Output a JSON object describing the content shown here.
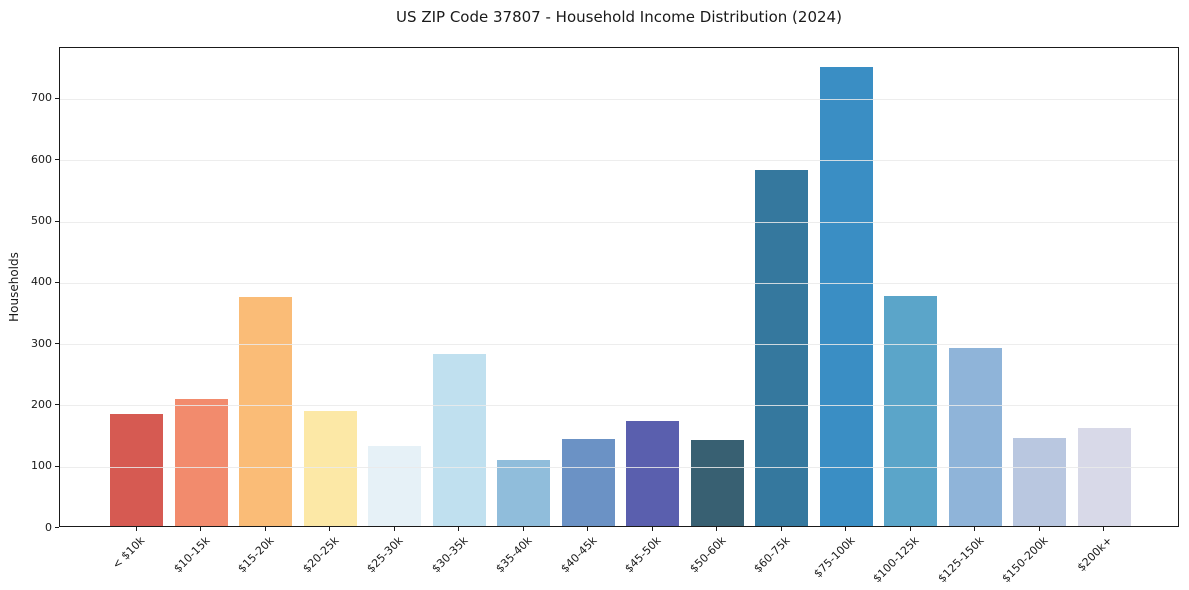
{
  "title": "US ZIP Code 37807 - Household Income Distribution (2024)",
  "chart_data": {
    "type": "bar",
    "title": "US ZIP Code 37807 - Household Income Distribution (2024)",
    "xlabel": "",
    "ylabel": "Households",
    "categories": [
      "< $10k",
      "$10-15k",
      "$15-20k",
      "$20-25k",
      "$25-30k",
      "$30-35k",
      "$35-40k",
      "$40-45k",
      "$45-50k",
      "$50-60k",
      "$60-75k",
      "$75-100k",
      "$100-125k",
      "$125-150k",
      "$150-200k",
      "$200k+"
    ],
    "values": [
      182,
      207,
      374,
      188,
      130,
      280,
      108,
      142,
      171,
      140,
      580,
      749,
      375,
      290,
      144,
      160
    ],
    "bar_colors": [
      "#d65a52",
      "#f28b6d",
      "#fabc77",
      "#fce8a6",
      "#e6f1f7",
      "#c0e0ef",
      "#90bddb",
      "#6b92c5",
      "#5a5fae",
      "#386072",
      "#35789e",
      "#3a8ec4",
      "#5ba5c9",
      "#8fb4d9",
      "#b9c7e0",
      "#d8d9e8"
    ],
    "yticks": [
      0,
      100,
      200,
      300,
      400,
      500,
      600,
      700
    ],
    "ylim": [
      0,
      783
    ],
    "grid": "horizontal-over-bars",
    "legend": "none",
    "colors": {
      "background": "#ffffff",
      "spine": "#1a1a1a",
      "gridline": "#eaeaea",
      "text": "#1a1a1a"
    }
  }
}
